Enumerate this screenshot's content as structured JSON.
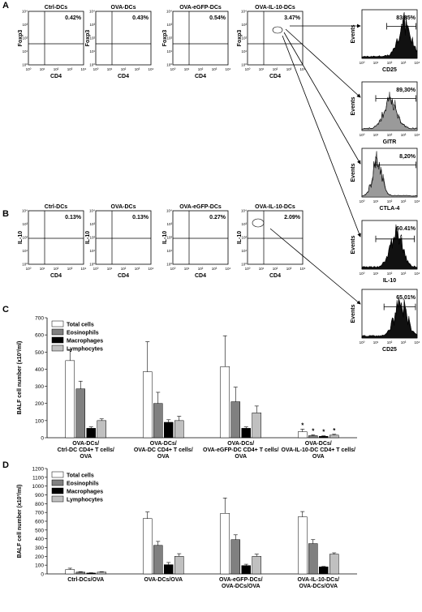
{
  "panel_a": {
    "letter": "A",
    "plots": [
      {
        "title": "Ctrl-DCs",
        "pct": "0.42%",
        "ylabel": "Foxp3",
        "xlabel": "CD4"
      },
      {
        "title": "OVA-DCs",
        "pct": "0.43%",
        "ylabel": "Foxp3",
        "xlabel": "CD4"
      },
      {
        "title": "OVA-eGFP-DCs",
        "pct": "0.54%",
        "ylabel": "Foxp3",
        "xlabel": "CD4"
      },
      {
        "title": "OVA-IL-10-DCs",
        "pct": "3.47%",
        "ylabel": "Foxp3",
        "xlabel": "CD4"
      }
    ]
  },
  "panel_b": {
    "letter": "B",
    "plots": [
      {
        "title": "Ctrl-DCs",
        "pct": "0.13%",
        "ylabel": "IL-10",
        "xlabel": "CD4"
      },
      {
        "title": "OVA-DCs",
        "pct": "0.13%",
        "ylabel": "IL-10",
        "xlabel": "CD4"
      },
      {
        "title": "OVA-eGFP-DCs",
        "pct": "0.27%",
        "ylabel": "IL-10",
        "xlabel": "CD4"
      },
      {
        "title": "OVA-IL-10-DCs",
        "pct": "2.09%",
        "ylabel": "IL-10",
        "xlabel": "CD4"
      }
    ]
  },
  "histograms": [
    {
      "pct": "83,85%",
      "xlabel": "CD25",
      "ylabel": "Events"
    },
    {
      "pct": "89,30%",
      "xlabel": "GITR",
      "ylabel": "Events"
    },
    {
      "pct": "8,20%",
      "xlabel": "CTLA-4",
      "ylabel": "Events"
    },
    {
      "pct": "60.41%",
      "xlabel": "IL-10",
      "ylabel": "Events"
    },
    {
      "pct": "65,01%",
      "xlabel": "CD25",
      "ylabel": "Events"
    }
  ],
  "axis_ticks": {
    "log": [
      "10⁰",
      "10¹",
      "10²",
      "10³",
      "10⁴"
    ]
  },
  "legend": [
    "Total cells",
    "Eosinophils",
    "Macrophages",
    "Lymphocytes"
  ],
  "series_colors": [
    "#ffffff",
    "#808080",
    "#000000",
    "#c0c0c0"
  ],
  "chart_data": [
    {
      "panel": "C",
      "type": "bar",
      "ylabel": "BALF cell number (x10³/ml)",
      "ylim": [
        0,
        700
      ],
      "yticks": [
        "0",
        "100",
        "200",
        "300",
        "400",
        "500",
        "600",
        "700"
      ],
      "categories": [
        [
          "OVA-DCs/",
          "Ctrl-DC CD4+ T cells/",
          "OVA"
        ],
        [
          "OVA-DCs/",
          "OVA-DC CD4+ T cells/",
          "OVA"
        ],
        [
          "OVA-DCs/",
          "OVA-eGFP-DC CD4+ T cells/",
          "OVA"
        ],
        [
          "OVA-DCs/",
          "OVA-IL-10-DC CD4+ T cells/",
          "OVA"
        ]
      ],
      "series": [
        {
          "name": "Total cells",
          "values": [
            450,
            385,
            415,
            35
          ],
          "err": [
            65,
            175,
            180,
            15
          ]
        },
        {
          "name": "Eosinophils",
          "values": [
            285,
            200,
            210,
            12
          ],
          "err": [
            45,
            65,
            85,
            5
          ]
        },
        {
          "name": "Macrophages",
          "values": [
            55,
            90,
            55,
            8
          ],
          "err": [
            8,
            15,
            8,
            3
          ]
        },
        {
          "name": "Lymphocytes",
          "values": [
            100,
            100,
            145,
            15
          ],
          "err": [
            10,
            25,
            40,
            5
          ]
        }
      ],
      "annotations": [
        "*",
        "*",
        "*",
        "*"
      ]
    },
    {
      "panel": "D",
      "type": "bar",
      "ylabel": "BALF cell number (x10³/ml)",
      "ylim": [
        0,
        1200
      ],
      "yticks": [
        "0",
        "100",
        "200",
        "300",
        "400",
        "500",
        "600",
        "700",
        "800",
        "900",
        "1000",
        "1100",
        "1200"
      ],
      "categories": [
        [
          "Ctrl-DCs/OVA"
        ],
        [
          "OVA-DCs/OVA"
        ],
        [
          "OVA-eGFP-DCs/",
          "OVA-DCs/OVA"
        ],
        [
          "OVA-IL-10-DCs/",
          "OVA-DCs/OVA"
        ]
      ],
      "series": [
        {
          "name": "Total cells",
          "values": [
            50,
            630,
            690,
            650
          ],
          "err": [
            15,
            75,
            175,
            60
          ]
        },
        {
          "name": "Eosinophils",
          "values": [
            20,
            325,
            390,
            345
          ],
          "err": [
            5,
            45,
            55,
            45
          ]
        },
        {
          "name": "Macrophages",
          "values": [
            10,
            105,
            95,
            80
          ],
          "err": [
            3,
            25,
            15,
            5
          ]
        },
        {
          "name": "Lymphocytes",
          "values": [
            20,
            200,
            200,
            225
          ],
          "err": [
            5,
            30,
            25,
            15
          ]
        }
      ]
    }
  ]
}
